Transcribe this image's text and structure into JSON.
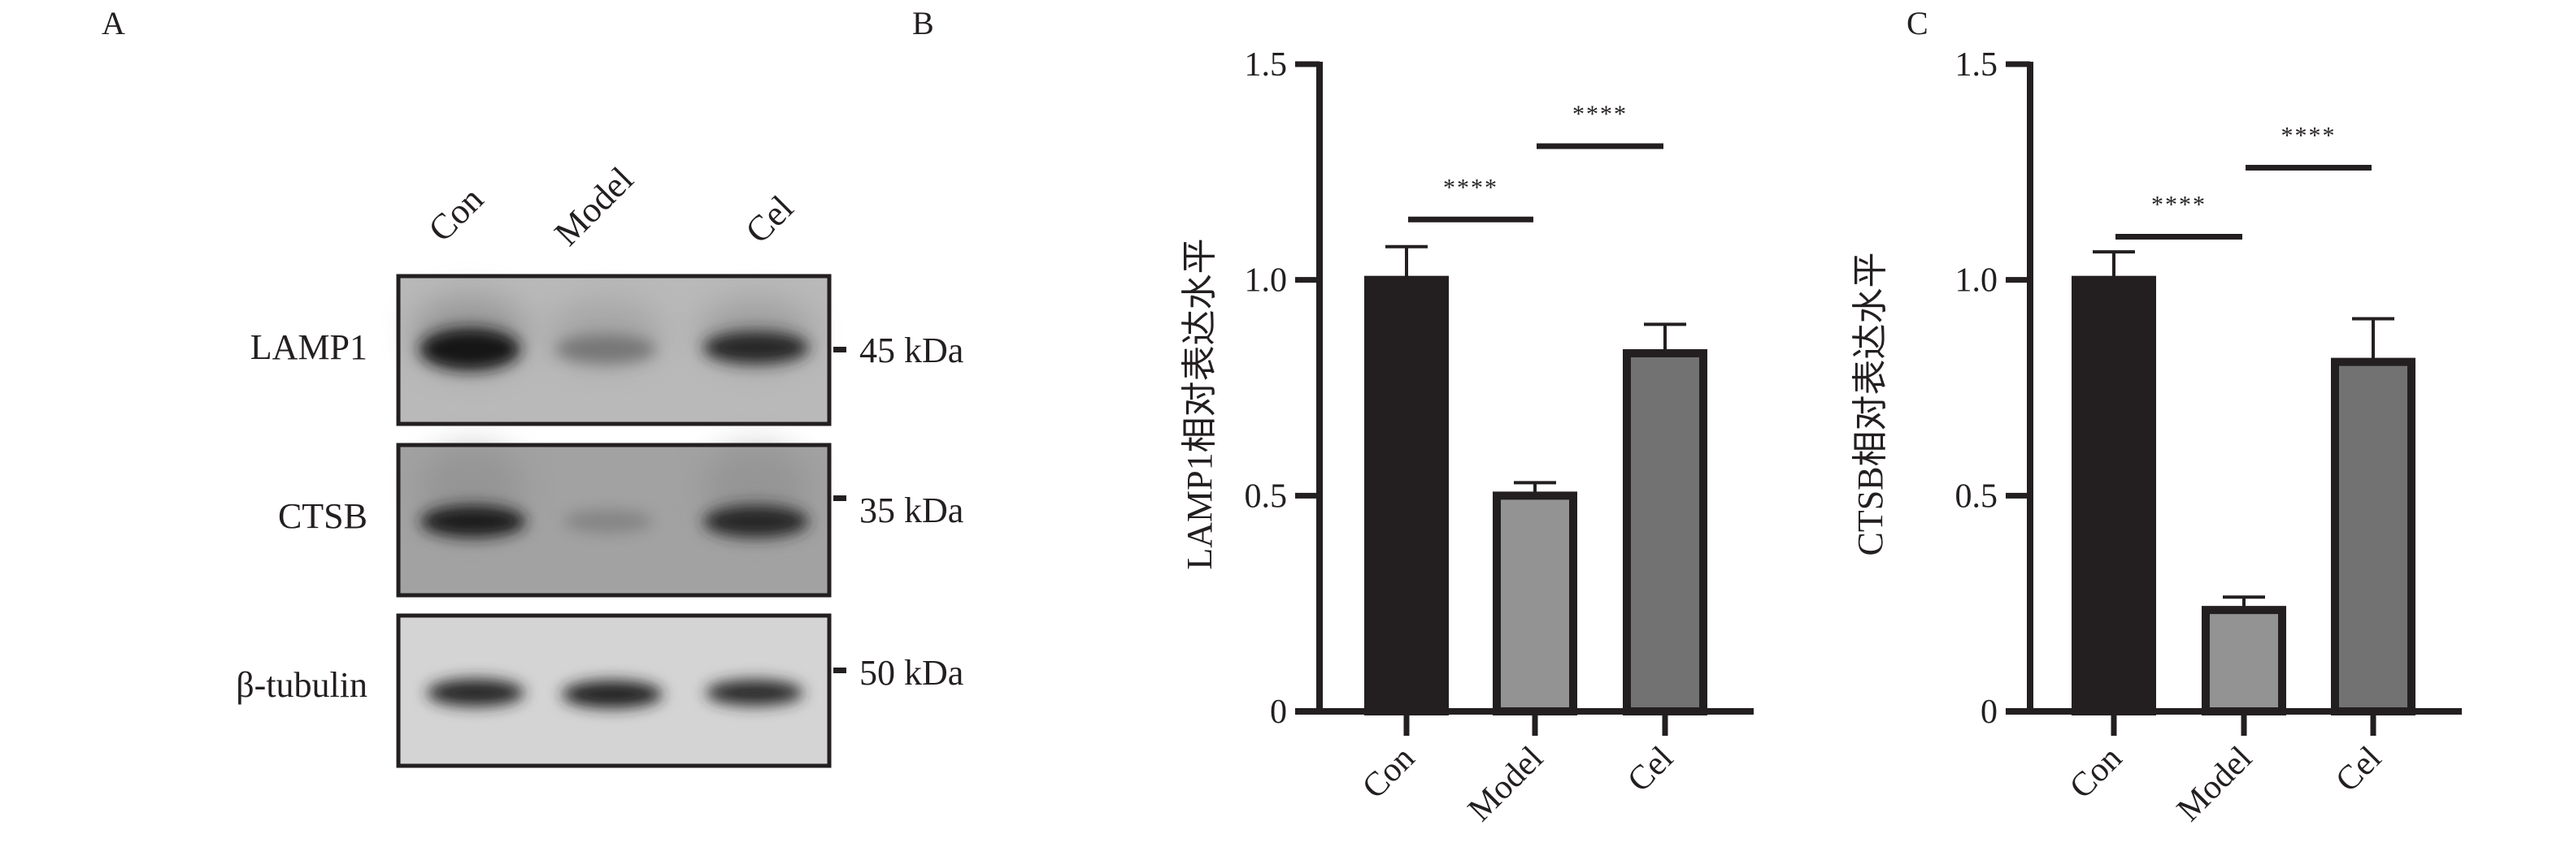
{
  "panel_labels": {
    "a": "A",
    "b": "B",
    "c": "C"
  },
  "blot": {
    "lanes": [
      "Con",
      "Model",
      "Cel"
    ],
    "rows": [
      {
        "protein": "LAMP1",
        "marker": "45 kDa"
      },
      {
        "protein": "CTSB",
        "marker": "35 kDa"
      },
      {
        "protein": "β-tubulin",
        "marker": "50 kDa"
      }
    ]
  },
  "chart_data": [
    {
      "type": "bar",
      "panel": "B",
      "categories": [
        "Con",
        "Model",
        "Cel"
      ],
      "values": [
        1.0,
        0.5,
        0.83
      ],
      "errors": [
        0.077,
        0.03,
        0.067
      ],
      "colors": [
        "#231f20",
        "#939393",
        "#727272"
      ],
      "ylabel": "LAMP1相对表达水平",
      "ylim": [
        0,
        1.5
      ],
      "yticks": [
        "0",
        "0.5",
        "1.0",
        "1.5"
      ],
      "significance": [
        {
          "from": "Con",
          "to": "Model",
          "label": "****",
          "y": 1.14
        },
        {
          "from": "Model",
          "to": "Cel",
          "label": "****",
          "y": 1.31
        }
      ]
    },
    {
      "type": "bar",
      "panel": "C",
      "categories": [
        "Con",
        "Model",
        "Cel"
      ],
      "values": [
        1.0,
        0.235,
        0.81
      ],
      "errors": [
        0.065,
        0.03,
        0.1
      ],
      "colors": [
        "#231f20",
        "#939393",
        "#727272"
      ],
      "ylabel": "CTSB相对表达水平",
      "ylim": [
        0,
        1.5
      ],
      "yticks": [
        "0",
        "0.5",
        "1.0",
        "1.5"
      ],
      "significance": [
        {
          "from": "Con",
          "to": "Model",
          "label": "****",
          "y": 1.1
        },
        {
          "from": "Model",
          "to": "Cel",
          "label": "****",
          "y": 1.26
        }
      ]
    }
  ]
}
